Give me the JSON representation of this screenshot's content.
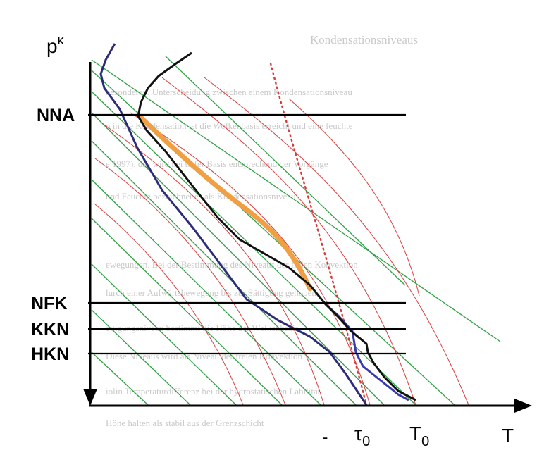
{
  "axes": {
    "y_label_base": "p",
    "y_label_exp": "κ",
    "x_label": "T",
    "tau0_base": "τ",
    "tau0_sub": "0",
    "T0_base": "T",
    "T0_sub": "0",
    "dash_mark": "-"
  },
  "levels": [
    {
      "label": "NNA"
    },
    {
      "label": "NFK"
    },
    {
      "label": "KKN"
    },
    {
      "label": "HKN"
    }
  ],
  "background_text": {
    "heading": "Kondensationsniveaus",
    "lines": [
      "besonderen. Unterscheidung zwischen einem Kondensationsniveau",
      "n in die Kondensation ist die Wolkenbasis erreicht und eine feuchte",
      "e 1997), das wird bei tiefer Basis entsprechend der Vorgänge",
      "und Feuchte bezeichnet es als Kondensationsniveau",
      "ewegungen. Bei der Bestimmung des Niveaus der freien Konvektion",
      "lurch einer Aufwärtsbewegung bis zur Sättigung gehoben",
      "ettigungsniveau bestimmt die Höhe der Wolkenbasis",
      "Diese Niveaus wird als Niveau der freien Konvektion",
      "iolin Temperaturdifferenz bei der hydrostatischen Labilität",
      "Höhe halten als stabil aus der Grenzschicht"
    ]
  },
  "colors": {
    "dry_adiabat": "#2ea043",
    "moist_adiabat": "#e03a3a",
    "mixing_ratio": "#d93b3b",
    "temperature": "#111111",
    "dewpoint": "#2c2c7a",
    "parcel": "#f0a043",
    "axis": "#000000"
  }
}
